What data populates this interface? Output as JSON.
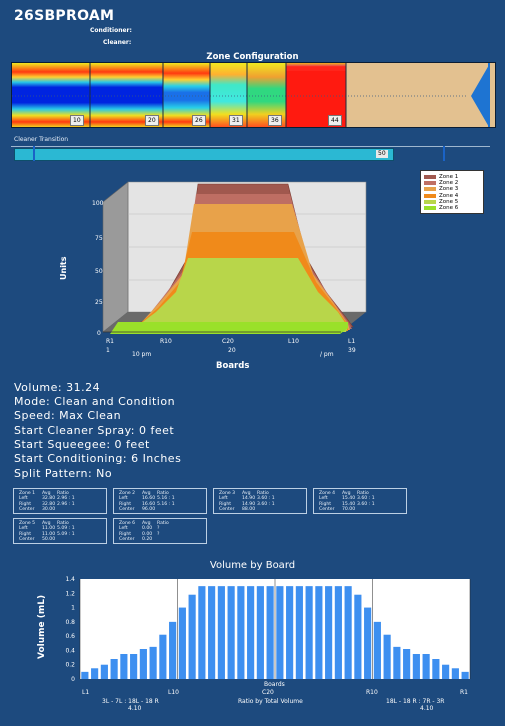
{
  "header": {
    "title": "26SBPROAM",
    "conditioner_label": "Conditioner:",
    "cleaner_label": "Cleaner:"
  },
  "zone_config": {
    "title": "Zone Configuration",
    "board_labels": [
      "10",
      "20",
      "26",
      "31",
      "36",
      "44"
    ],
    "colors": {
      "lane_tan": "#e3c190",
      "red": "#ff1a10",
      "arrow": "#1e74d2"
    }
  },
  "cleaner_transition": {
    "label": "Cleaner Transition",
    "value": "50",
    "bar_color": "#2bb8d3"
  },
  "chart_3d": {
    "type": "area",
    "ylabel": "Units",
    "xlabel": "Boards",
    "yticks": [
      "100",
      "75",
      "50",
      "25",
      "0"
    ],
    "xticks_top": [
      "R1",
      "R10",
      "C20",
      "L10",
      "L1"
    ],
    "xticks_bottom": [
      "1",
      "10 pm",
      "20",
      "/ pm",
      "39"
    ],
    "legend": [
      "Zone 1",
      "Zone 2",
      "Zone 3",
      "Zone 4",
      "Zone 5",
      "Zone 6"
    ],
    "colors": [
      "#a0584e",
      "#c07064",
      "#e8a24a",
      "#f08a1a",
      "#b8d64a",
      "#9ae02a"
    ]
  },
  "summary": {
    "volume": "Volume: 31.24",
    "mode": "Mode: Clean and Condition",
    "speed": "Speed: Max Clean",
    "cleaner_spray": "Start Cleaner Spray: 0 feet",
    "squeegee": "Start Squeegee: 0 feet",
    "conditioning": "Start Conditioning: 6 Inches",
    "split": "Split Pattern: No"
  },
  "zones": [
    {
      "name": "Zone 1",
      "h_avg": "Avg",
      "h_ratio": "Ratio",
      "left": "Left",
      "left_avg": "32.80",
      "left_ratio": "2.96 : 1",
      "right": "Right",
      "right_avg": "32.80",
      "right_ratio": "2.96 : 1",
      "center": "Center",
      "center_avg": "30.00"
    },
    {
      "name": "Zone 2",
      "h_avg": "Avg",
      "h_ratio": "Ratio",
      "left": "Left",
      "left_avg": "16.60",
      "left_ratio": "5.16 : 1",
      "right": "Right",
      "right_avg": "16.60",
      "right_ratio": "5.16 : 1",
      "center": "Center",
      "center_avg": "96.00"
    },
    {
      "name": "Zone 3",
      "h_avg": "Avg",
      "h_ratio": "Ratio",
      "left": "Left",
      "left_avg": "14.90",
      "left_ratio": "3.60 : 1",
      "right": "Right",
      "right_avg": "14.90",
      "right_ratio": "3.60 : 1",
      "center": "Center",
      "center_avg": "88.00"
    },
    {
      "name": "Zone 4",
      "h_avg": "Avg",
      "h_ratio": "Ratio",
      "left": "Left",
      "left_avg": "15.40",
      "left_ratio": "3.60 : 1",
      "right": "Right",
      "right_avg": "15.40",
      "right_ratio": "3.60 : 1",
      "center": "Center",
      "center_avg": "70.00"
    },
    {
      "name": "Zone 5",
      "h_avg": "Avg",
      "h_ratio": "Ratio",
      "left": "Left",
      "left_avg": "11.00",
      "left_ratio": "5.09 : 1",
      "right": "Right",
      "right_avg": "11.00",
      "right_ratio": "5.09 : 1",
      "center": "Center",
      "center_avg": "50.00"
    },
    {
      "name": "Zone 6",
      "h_avg": "Avg",
      "h_ratio": "Ratio",
      "left": "Left",
      "left_avg": "0.00",
      "left_ratio": "?",
      "right": "Right",
      "right_avg": "0.00",
      "right_ratio": "?",
      "center": "Center",
      "center_avg": "0.20"
    }
  ],
  "volume_by_board": {
    "title": "Volume by Board",
    "chart_data": {
      "type": "bar",
      "ylabel": "Volume (mL)",
      "xlabel": "Boards",
      "ylim": [
        0,
        1.4
      ],
      "yticks": [
        "1.4",
        "1.2",
        "1",
        "0.8",
        "0.6",
        "0.4",
        "0.2",
        "0"
      ],
      "xtick_labels": [
        "L1",
        "L10",
        "C20",
        "R10",
        "R1"
      ],
      "values": [
        0.1,
        0.15,
        0.2,
        0.28,
        0.35,
        0.35,
        0.42,
        0.45,
        0.62,
        0.8,
        1.0,
        1.18,
        1.3,
        1.3,
        1.3,
        1.3,
        1.3,
        1.3,
        1.3,
        1.3,
        1.3,
        1.3,
        1.3,
        1.3,
        1.3,
        1.3,
        1.3,
        1.3,
        1.18,
        1.0,
        0.8,
        0.62,
        0.45,
        0.42,
        0.35,
        0.35,
        0.28,
        0.2,
        0.15,
        0.1
      ],
      "bar_color": "#3d8ff0"
    },
    "footer_left": "3L - 7L : 18L - 18 R",
    "footer_left_val": "4.10",
    "footer_center": "Ratio by Total Volume",
    "footer_right": "18L - 18 R : 7R - 3R",
    "footer_right_val": "4.10"
  }
}
